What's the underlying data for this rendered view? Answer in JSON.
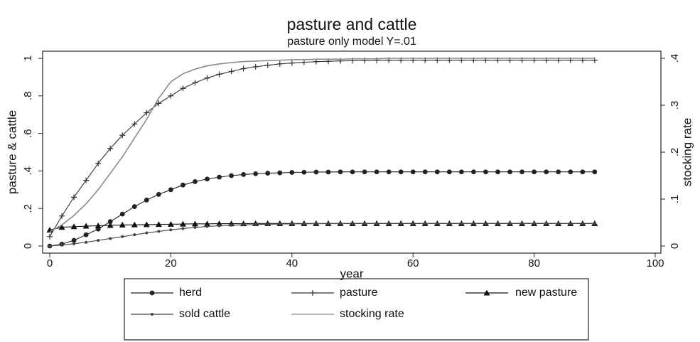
{
  "chart_data": {
    "type": "line",
    "title": "pasture and cattle",
    "subtitle": "pasture only model  Y=.01",
    "x_label": "year",
    "y_label": "pasture & cattle",
    "y2_label": "stocking rate",
    "x": [
      0,
      2,
      4,
      6,
      8,
      10,
      12,
      14,
      16,
      18,
      20,
      22,
      24,
      26,
      28,
      30,
      32,
      34,
      36,
      38,
      40,
      42,
      44,
      46,
      48,
      50,
      52,
      54,
      56,
      58,
      60,
      62,
      64,
      66,
      68,
      70,
      72,
      74,
      76,
      78,
      80,
      82,
      84,
      86,
      88,
      90
    ],
    "xlim": [
      0,
      100
    ],
    "xticks": [
      0,
      20,
      40,
      60,
      80,
      100
    ],
    "ylim": [
      0,
      1
    ],
    "yticks": [
      0,
      {
        "value": 0.2,
        "label": ".2"
      },
      {
        "value": 0.4,
        "label": ".4"
      },
      {
        "value": 0.6,
        "label": ".6"
      },
      {
        "value": 0.8,
        "label": ".8"
      },
      1
    ],
    "y2lim": [
      0,
      0.4
    ],
    "y2ticks": [
      0,
      {
        "value": 0.1,
        "label": ".1"
      },
      {
        "value": 0.2,
        "label": ".2"
      },
      {
        "value": 0.3,
        "label": ".3"
      },
      {
        "value": 0.4,
        "label": ".4"
      }
    ],
    "grid": false,
    "legend": "bottom",
    "series": [
      {
        "name": "herd",
        "color": "#222222",
        "marker": "circle",
        "values": [
          0,
          0.01,
          0.03,
          0.06,
          0.09,
          0.13,
          0.17,
          0.21,
          0.245,
          0.275,
          0.3,
          0.325,
          0.343,
          0.357,
          0.367,
          0.375,
          0.381,
          0.385,
          0.388,
          0.39,
          0.392,
          0.393,
          0.394,
          0.394,
          0.395,
          0.395,
          0.395,
          0.395,
          0.395,
          0.395,
          0.395,
          0.395,
          0.395,
          0.395,
          0.395,
          0.395,
          0.395,
          0.395,
          0.395,
          0.395,
          0.395,
          0.395,
          0.395,
          0.395,
          0.395,
          0.395
        ]
      },
      {
        "name": "pasture",
        "color": "#333333",
        "marker": "plus",
        "values": [
          0.05,
          0.16,
          0.26,
          0.35,
          0.44,
          0.52,
          0.59,
          0.65,
          0.71,
          0.76,
          0.8,
          0.84,
          0.87,
          0.895,
          0.915,
          0.93,
          0.945,
          0.955,
          0.963,
          0.97,
          0.975,
          0.979,
          0.982,
          0.984,
          0.986,
          0.987,
          0.988,
          0.989,
          0.99,
          0.99,
          0.99,
          0.99,
          0.99,
          0.99,
          0.99,
          0.99,
          0.99,
          0.99,
          0.99,
          0.99,
          0.99,
          0.99,
          0.99,
          0.99,
          0.99,
          0.99
        ]
      },
      {
        "name": "new pasture",
        "color": "#111111",
        "marker": "triangle",
        "values": [
          0.085,
          0.1,
          0.103,
          0.106,
          0.108,
          0.11,
          0.112,
          0.113,
          0.114,
          0.115,
          0.116,
          0.117,
          0.118,
          0.118,
          0.119,
          0.119,
          0.119,
          0.12,
          0.12,
          0.12,
          0.12,
          0.12,
          0.12,
          0.12,
          0.12,
          0.12,
          0.12,
          0.12,
          0.12,
          0.12,
          0.12,
          0.12,
          0.12,
          0.12,
          0.12,
          0.12,
          0.12,
          0.12,
          0.12,
          0.12,
          0.12,
          0.12,
          0.12,
          0.12,
          0.12,
          0.12
        ]
      },
      {
        "name": "sold cattle",
        "color": "#444444",
        "marker": "dot",
        "values": [
          0,
          0.005,
          0.012,
          0.02,
          0.03,
          0.04,
          0.05,
          0.06,
          0.07,
          0.078,
          0.086,
          0.093,
          0.099,
          0.104,
          0.108,
          0.111,
          0.113,
          0.115,
          0.116,
          0.117,
          0.118,
          0.118,
          0.119,
          0.119,
          0.119,
          0.12,
          0.12,
          0.12,
          0.12,
          0.12,
          0.12,
          0.12,
          0.12,
          0.12,
          0.12,
          0.12,
          0.12,
          0.12,
          0.12,
          0.12,
          0.12,
          0.12,
          0.12,
          0.12,
          0.12,
          0.12
        ]
      },
      {
        "name": "stocking rate",
        "color": "#8a8a8a",
        "marker": "none",
        "axis": "y2",
        "values": [
          0.03,
          0.045,
          0.065,
          0.09,
          0.12,
          0.155,
          0.19,
          0.23,
          0.27,
          0.315,
          0.35,
          0.367,
          0.377,
          0.384,
          0.388,
          0.391,
          0.393,
          0.394,
          0.395,
          0.396,
          0.397,
          0.397,
          0.398,
          0.398,
          0.398,
          0.399,
          0.399,
          0.399,
          0.4,
          0.4,
          0.4,
          0.4,
          0.4,
          0.4,
          0.4,
          0.4,
          0.4,
          0.4,
          0.4,
          0.4,
          0.4,
          0.4,
          0.4,
          0.4,
          0.4,
          0.4
        ]
      }
    ]
  }
}
